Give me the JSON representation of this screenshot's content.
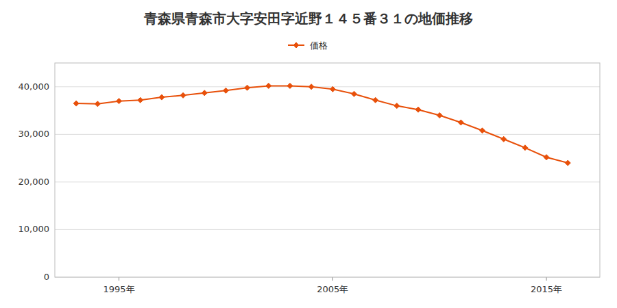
{
  "chart_data": {
    "type": "line",
    "title": "青森県青森市大字安田字近野１４５番３１の地価推移",
    "x": [
      1993,
      1994,
      1995,
      1996,
      1997,
      1998,
      1999,
      2000,
      2001,
      2002,
      2003,
      2004,
      2005,
      2006,
      2007,
      2008,
      2009,
      2010,
      2011,
      2012,
      2013,
      2014,
      2015,
      2016
    ],
    "series": [
      {
        "name": "価格",
        "color": "#e8500a",
        "marker": "diamond",
        "values": [
          36500,
          36400,
          37000,
          37200,
          37800,
          38200,
          38700,
          39200,
          39800,
          40200,
          40200,
          40000,
          39500,
          38500,
          37200,
          36000,
          35200,
          34000,
          32500,
          30800,
          29000,
          27200,
          25200,
          24000
        ]
      }
    ],
    "xlim": [
      1992,
      2017.5
    ],
    "xticks": [
      {
        "value": 1995,
        "label": "1995年"
      },
      {
        "value": 2005,
        "label": "2005年"
      },
      {
        "value": 2015,
        "label": "2015年"
      }
    ],
    "ylim": [
      0,
      45000
    ],
    "yticks": [
      0,
      {
        "value": 10000,
        "label": "10,000"
      },
      {
        "value": 20000,
        "label": "20,000"
      },
      {
        "value": 30000,
        "label": "30,000"
      },
      {
        "value": 40000,
        "label": "40,000"
      }
    ],
    "grid": true,
    "legend": "top"
  }
}
